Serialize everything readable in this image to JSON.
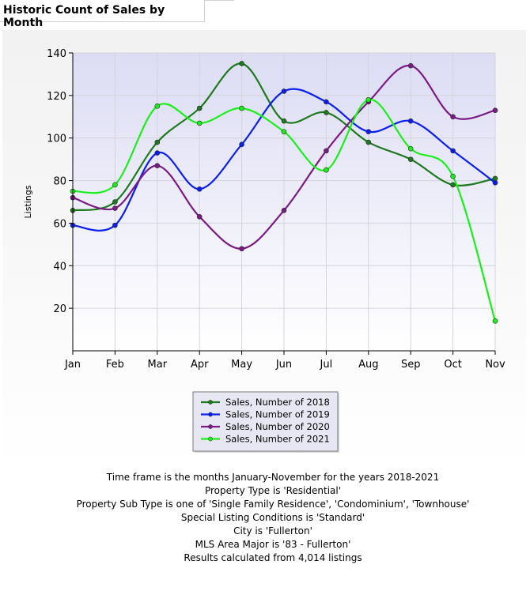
{
  "panel": {
    "title": "Historic Count of Sales by Month"
  },
  "chart_data": {
    "type": "line",
    "title": "",
    "xlabel": "",
    "ylabel": "Listings",
    "categories": [
      "Jan",
      "Feb",
      "Mar",
      "Apr",
      "May",
      "Jun",
      "Jul",
      "Aug",
      "Sep",
      "Oct",
      "Nov"
    ],
    "yticks": [
      "20",
      "40",
      "60",
      "80",
      "100",
      "120",
      "140"
    ],
    "ylim": [
      0,
      140
    ],
    "grid": true,
    "legend_position": "bottom-center",
    "series": [
      {
        "name": "Sales, Number of 2018",
        "color": "#1e7a1e",
        "values": [
          66,
          70,
          98,
          114,
          135,
          108,
          112,
          98,
          90,
          78,
          81
        ]
      },
      {
        "name": "Sales, Number of 2019",
        "color": "#0a1ef0",
        "values": [
          59,
          59,
          93,
          76,
          97,
          122,
          117,
          103,
          108,
          94,
          79
        ]
      },
      {
        "name": "Sales, Number of 2020",
        "color": "#7a1a84",
        "values": [
          72,
          67,
          87,
          63,
          48,
          66,
          94,
          117,
          134,
          110,
          113
        ]
      },
      {
        "name": "Sales, Number of 2021",
        "color": "#19f019",
        "values": [
          75,
          78,
          115,
          107,
          114,
          103,
          85,
          118,
          95,
          82,
          14
        ]
      }
    ]
  },
  "footer": {
    "lines": [
      "Time frame is the months January-November for the years 2018-2021",
      "Property Type is 'Residential'",
      "Property Sub Type is one of 'Single Family Residence', 'Condominium', 'Townhouse'",
      "Special Listing Conditions is 'Standard'",
      "City is 'Fullerton'",
      "MLS Area Major is '83 - Fullerton'",
      "Results calculated from 4,014 listings"
    ]
  }
}
